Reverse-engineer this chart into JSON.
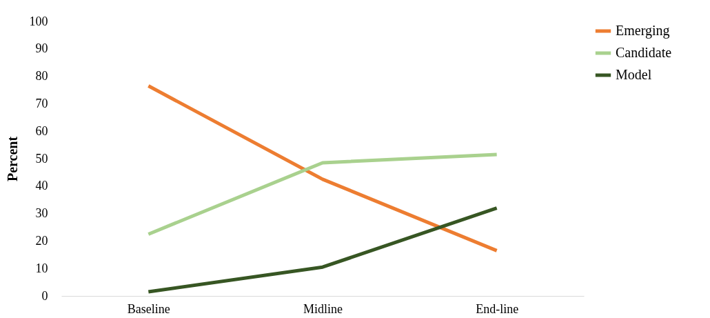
{
  "chart_data": {
    "type": "line",
    "ylabel": "Percent",
    "categories": [
      "Baseline",
      "Midline",
      "End-line"
    ],
    "series": [
      {
        "name": "Emerging",
        "color": "#ed7d31",
        "values": [
          76.5,
          42.5,
          16.5
        ]
      },
      {
        "name": "Candidate",
        "color": "#a9d18e",
        "values": [
          22.5,
          48.5,
          51.5
        ]
      },
      {
        "name": "Model",
        "color": "#375623",
        "values": [
          1.5,
          10.5,
          32
        ]
      }
    ],
    "ylim": [
      0,
      100
    ],
    "yticks": [
      0,
      10,
      20,
      30,
      40,
      50,
      60,
      70,
      80,
      90,
      100
    ],
    "grid": false,
    "legend": "top right",
    "marker": "none",
    "line_style": "solid"
  }
}
